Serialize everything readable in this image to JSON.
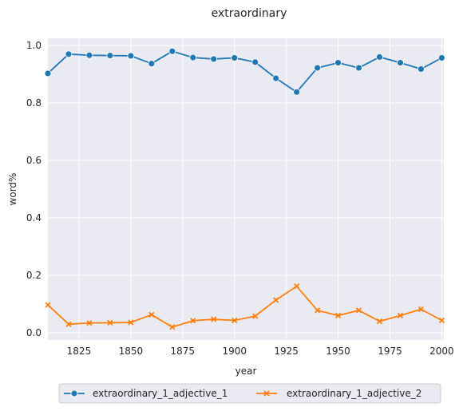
{
  "chart_data": {
    "type": "line",
    "title": "extraordinary",
    "xlabel": "year",
    "ylabel": "word%",
    "xlim": [
      1810,
      2001
    ],
    "ylim": [
      -0.025,
      1.025
    ],
    "xticks": [
      1825,
      1850,
      1875,
      1900,
      1925,
      1950,
      1975,
      2000
    ],
    "yticks": [
      0.0,
      0.2,
      0.4,
      0.6,
      0.8,
      1.0
    ],
    "xtick_labels": [
      "1825",
      "1850",
      "1875",
      "1900",
      "1925",
      "1950",
      "1975",
      "2000"
    ],
    "ytick_labels": [
      "0.0",
      "0.2",
      "0.4",
      "0.6",
      "0.8",
      "1.0"
    ],
    "grid": true,
    "legend_position": "bottom-center",
    "x": [
      1810,
      1820,
      1830,
      1840,
      1850,
      1860,
      1870,
      1880,
      1890,
      1900,
      1910,
      1920,
      1930,
      1940,
      1950,
      1960,
      1970,
      1980,
      1990,
      2000
    ],
    "series": [
      {
        "name": "extraordinary_1_adjective_1",
        "color": "#1f77b4",
        "marker": "circle",
        "values": [
          0.903,
          0.97,
          0.966,
          0.965,
          0.964,
          0.937,
          0.98,
          0.958,
          0.953,
          0.957,
          0.942,
          0.886,
          0.838,
          0.922,
          0.94,
          0.922,
          0.96,
          0.94,
          0.918,
          0.957
        ]
      },
      {
        "name": "extraordinary_1_adjective_2",
        "color": "#ff7f0e",
        "marker": "x",
        "values": [
          0.097,
          0.03,
          0.034,
          0.035,
          0.036,
          0.063,
          0.02,
          0.042,
          0.047,
          0.043,
          0.058,
          0.114,
          0.162,
          0.078,
          0.06,
          0.078,
          0.04,
          0.06,
          0.082,
          0.043
        ]
      }
    ]
  }
}
